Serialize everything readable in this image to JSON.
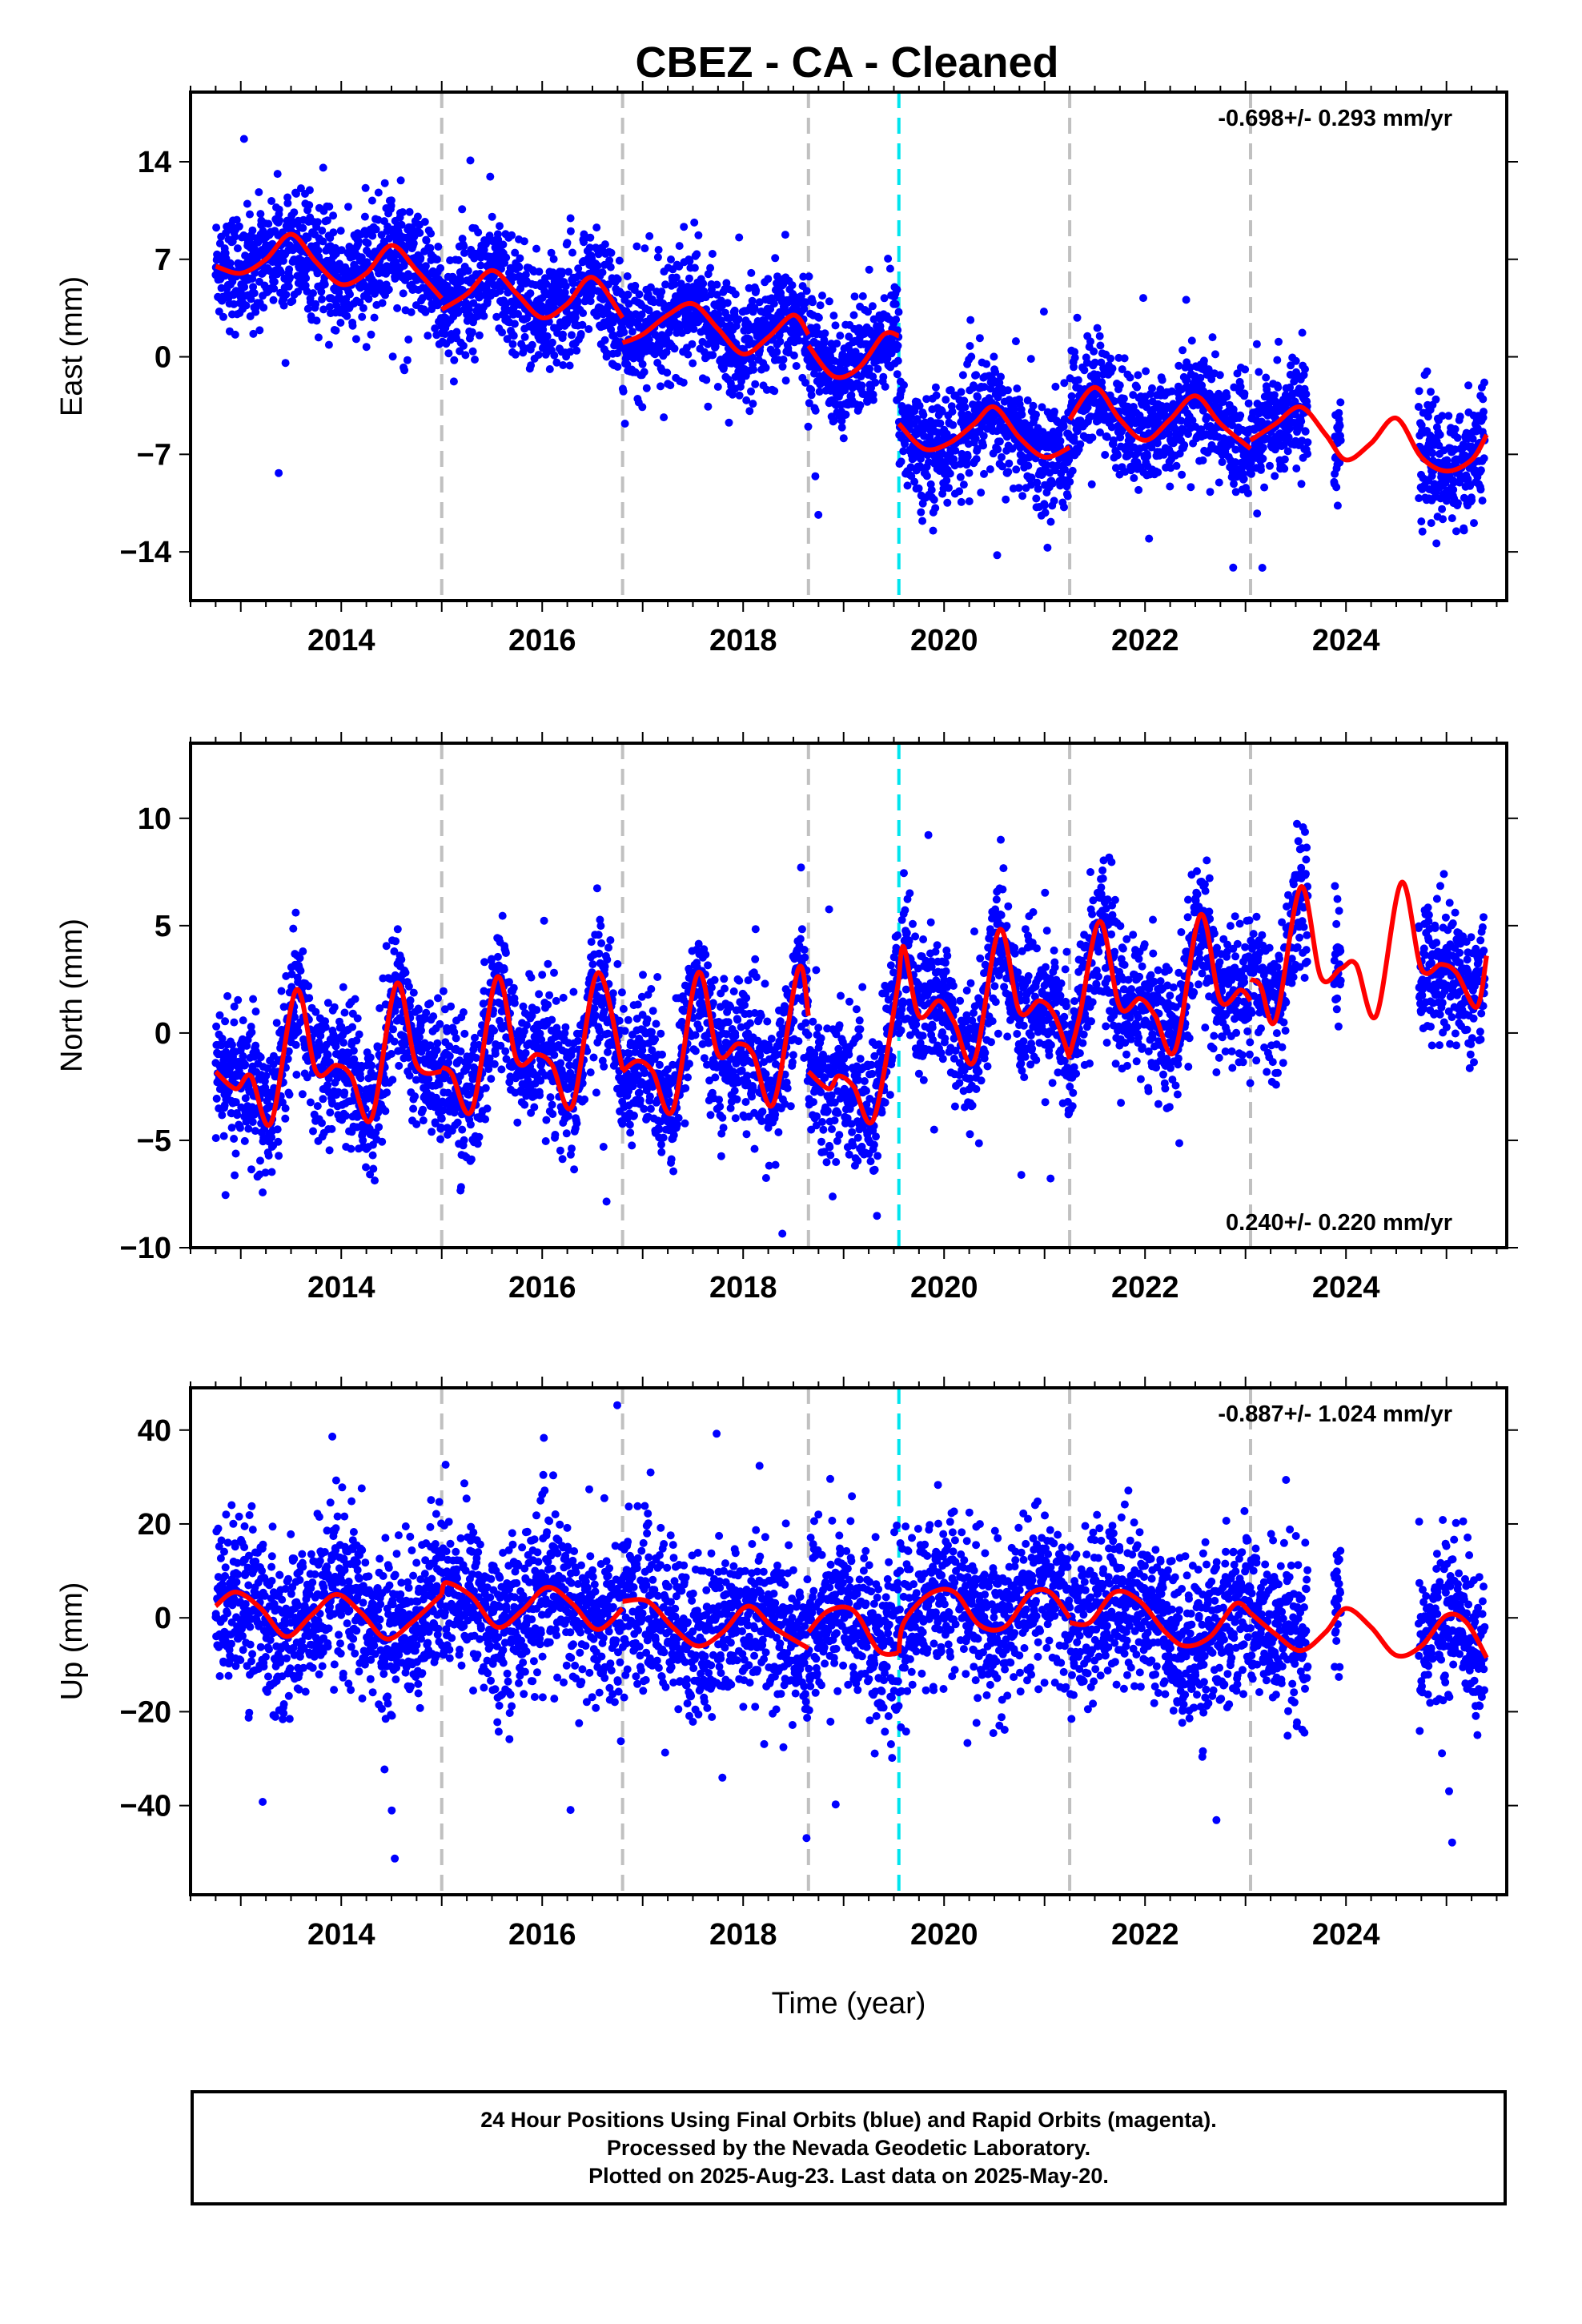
{
  "title": "CBEZ  - CA - Cleaned",
  "xlabel": "Time (year)",
  "colors": {
    "points": "#0000ff",
    "fit": "#ff0000",
    "offset_line": "#c0c0c0",
    "equipment_line": "#00e5ee"
  },
  "chart_data": [
    {
      "type": "scatter",
      "name": "east",
      "ylabel": "East (mm)",
      "rate_label": "-0.698+/- 0.293 mm/yr",
      "rate_position": "top-right",
      "xlim": [
        2012.5,
        2025.6
      ],
      "ylim": [
        -17.5,
        19
      ],
      "xticks": [
        2014,
        2016,
        2018,
        2020,
        2022,
        2024
      ],
      "xtick_labels": [
        "2014",
        "2016",
        "2018",
        "2020",
        "2022",
        "2024"
      ],
      "yticks": [
        14,
        7,
        0,
        -7,
        -14
      ],
      "ytick_labels": [
        "14",
        "7",
        "0",
        "−7",
        "−14"
      ],
      "vlines_gray": [
        2015.0,
        2016.8,
        2018.65,
        2021.25,
        2023.05
      ],
      "vlines_cyan": [
        2019.55
      ],
      "fit_segments": [
        {
          "x": [
            2012.75,
            2013.0,
            2013.25,
            2013.5,
            2013.75,
            2014.0,
            2014.25,
            2014.5,
            2014.75,
            2015.0
          ],
          "y": [
            6.5,
            6.0,
            7.0,
            8.8,
            6.8,
            5.2,
            6.0,
            8.0,
            6.2,
            4.2
          ]
        },
        {
          "x": [
            2015.0,
            2015.25,
            2015.5,
            2015.75,
            2016.0,
            2016.25,
            2016.5,
            2016.8
          ],
          "y": [
            3.4,
            4.5,
            6.2,
            4.5,
            2.8,
            3.8,
            5.7,
            2.8
          ]
        },
        {
          "x": [
            2016.8,
            2017.0,
            2017.25,
            2017.5,
            2017.75,
            2018.0,
            2018.25,
            2018.5,
            2018.65
          ],
          "y": [
            1.0,
            1.6,
            3.0,
            3.8,
            2.0,
            0.2,
            1.4,
            3.0,
            1.6
          ]
        },
        {
          "x": [
            2018.65,
            2018.9,
            2019.15,
            2019.4,
            2019.55
          ],
          "y": [
            0.8,
            -1.4,
            -0.8,
            1.6,
            1.5
          ]
        },
        {
          "x": [
            2019.55,
            2019.8,
            2020.05,
            2020.3,
            2020.5,
            2020.75,
            2021.0,
            2021.25
          ],
          "y": [
            -4.8,
            -6.6,
            -6.2,
            -4.8,
            -3.6,
            -5.8,
            -7.2,
            -6.5
          ]
        },
        {
          "x": [
            2021.25,
            2021.5,
            2021.75,
            2022.0,
            2022.25,
            2022.5,
            2022.75,
            2023.05
          ],
          "y": [
            -4.5,
            -2.2,
            -4.5,
            -6.0,
            -4.5,
            -2.8,
            -4.8,
            -6.6
          ]
        },
        {
          "x": [
            2023.05,
            2023.3,
            2023.55,
            2023.8,
            2024.0,
            2024.25,
            2024.5,
            2024.75,
            2025.0,
            2025.25,
            2025.4
          ],
          "y": [
            -6.0,
            -4.8,
            -3.6,
            -5.6,
            -7.4,
            -6.2,
            -4.4,
            -7.2,
            -8.2,
            -7.4,
            -5.6
          ]
        }
      ]
    },
    {
      "type": "scatter",
      "name": "north",
      "ylabel": "North (mm)",
      "rate_label": "0.240+/- 0.220 mm/yr",
      "rate_position": "bottom-right",
      "xlim": [
        2012.5,
        2025.6
      ],
      "ylim": [
        -10,
        13.5
      ],
      "xticks": [
        2014,
        2016,
        2018,
        2020,
        2022,
        2024
      ],
      "xtick_labels": [
        "2014",
        "2016",
        "2018",
        "2020",
        "2022",
        "2024"
      ],
      "yticks": [
        10,
        5,
        0,
        -5,
        -10
      ],
      "ytick_labels": [
        "10",
        "5",
        "0",
        "−5",
        "−10"
      ],
      "vlines_gray": [
        2015.0,
        2016.8,
        2018.65,
        2021.25,
        2023.05
      ],
      "vlines_cyan": [
        2019.55
      ],
      "fit_segments": [
        {
          "x": [
            2012.75,
            2012.95,
            2013.1,
            2013.3,
            2013.55,
            2013.75,
            2013.95,
            2014.1,
            2014.3,
            2014.55,
            2014.75,
            2015.0
          ],
          "y": [
            -1.8,
            -2.6,
            -2.0,
            -4.2,
            2.0,
            -1.8,
            -1.5,
            -2.0,
            -4.0,
            2.3,
            -1.5,
            -1.8
          ]
        },
        {
          "x": [
            2015.0,
            2015.1,
            2015.3,
            2015.55,
            2015.75,
            2015.95,
            2016.1,
            2016.3,
            2016.55,
            2016.8
          ],
          "y": [
            -1.6,
            -1.9,
            -3.6,
            2.6,
            -1.3,
            -1.0,
            -1.5,
            -3.4,
            2.8,
            -1.7
          ]
        },
        {
          "x": [
            2016.8,
            2016.95,
            2017.1,
            2017.3,
            2017.55,
            2017.75,
            2017.95,
            2018.1,
            2018.3,
            2018.55,
            2018.65
          ],
          "y": [
            -1.8,
            -1.3,
            -1.8,
            -3.6,
            2.8,
            -1.0,
            -0.5,
            -1.0,
            -3.3,
            3.0,
            0.8
          ]
        },
        {
          "x": [
            2018.65,
            2018.85,
            2018.95,
            2019.1,
            2019.3,
            2019.55
          ],
          "y": [
            -1.8,
            -2.6,
            -2.0,
            -2.5,
            -4.0,
            2.5
          ]
        },
        {
          "x": [
            2019.55,
            2019.6,
            2019.75,
            2019.95,
            2020.1,
            2020.3,
            2020.55,
            2020.75,
            2020.95,
            2021.1,
            2021.25
          ],
          "y": [
            2.5,
            4.0,
            0.8,
            1.5,
            0.5,
            -1.3,
            4.8,
            1.0,
            1.5,
            0.8,
            -1.2
          ]
        },
        {
          "x": [
            2021.25,
            2021.35,
            2021.55,
            2021.75,
            2021.95,
            2022.1,
            2022.3,
            2022.55,
            2022.75,
            2022.95,
            2023.05
          ],
          "y": [
            -1.0,
            0.8,
            5.2,
            1.2,
            1.6,
            0.8,
            -0.8,
            5.5,
            1.5,
            2.0,
            1.5
          ]
        },
        {
          "x": [
            2023.05,
            2023.15,
            2023.3,
            2023.55,
            2023.75,
            2023.95,
            2024.1,
            2024.3,
            2024.55,
            2024.75,
            2024.95,
            2025.1,
            2025.3,
            2025.4
          ],
          "y": [
            2.5,
            2.2,
            0.6,
            6.8,
            2.6,
            3.0,
            3.2,
            0.8,
            7.0,
            3.0,
            3.2,
            2.8,
            1.2,
            3.6
          ]
        }
      ]
    },
    {
      "type": "scatter",
      "name": "up",
      "ylabel": "Up (mm)",
      "rate_label": "-0.887+/- 1.024 mm/yr",
      "rate_position": "top-right",
      "xlim": [
        2012.5,
        2025.6
      ],
      "ylim": [
        -59,
        49
      ],
      "xticks": [
        2014,
        2016,
        2018,
        2020,
        2022,
        2024
      ],
      "xtick_labels": [
        "2014",
        "2016",
        "2018",
        "2020",
        "2022",
        "2024"
      ],
      "yticks": [
        40,
        20,
        0,
        -20,
        -40
      ],
      "ytick_labels": [
        "40",
        "20",
        "0",
        "−20",
        "−40"
      ],
      "vlines_gray": [
        2015.0,
        2016.8,
        2018.65,
        2021.25,
        2023.05
      ],
      "vlines_cyan": [
        2019.55
      ],
      "fit_segments": [
        {
          "x": [
            2012.75,
            2012.95,
            2013.2,
            2013.45,
            2013.7,
            2013.95,
            2014.2,
            2014.45,
            2014.7,
            2015.0
          ],
          "y": [
            2.5,
            5.5,
            2.0,
            -4.0,
            0.5,
            5.0,
            1.0,
            -4.5,
            -1.0,
            5.0
          ]
        },
        {
          "x": [
            2015.0,
            2015.05,
            2015.3,
            2015.55,
            2015.8,
            2016.05,
            2016.3,
            2016.55,
            2016.8
          ],
          "y": [
            5.0,
            7.5,
            4.5,
            -2.0,
            1.5,
            6.5,
            3.0,
            -2.5,
            2.0
          ]
        },
        {
          "x": [
            2016.8,
            2017.05,
            2017.3,
            2017.55,
            2017.8,
            2018.05,
            2018.3,
            2018.65
          ],
          "y": [
            3.5,
            3.5,
            -2.0,
            -6.0,
            -3.0,
            2.5,
            -2.0,
            -6.5
          ]
        },
        {
          "x": [
            2018.65,
            2018.85,
            2019.1,
            2019.35,
            2019.55
          ],
          "y": [
            -3.0,
            1.5,
            1.5,
            -7.0,
            -7.5
          ]
        },
        {
          "x": [
            2019.55,
            2019.6,
            2019.85,
            2020.1,
            2020.35,
            2020.6,
            2020.85,
            2021.05,
            2021.25
          ],
          "y": [
            -7.5,
            -1.0,
            5.0,
            5.5,
            -1.5,
            -2.0,
            5.0,
            5.5,
            0.0
          ]
        },
        {
          "x": [
            2021.25,
            2021.45,
            2021.7,
            2021.95,
            2022.2,
            2022.4,
            2022.65,
            2022.9,
            2023.05
          ],
          "y": [
            -1.0,
            -1.0,
            5.5,
            3.5,
            -3.0,
            -6.0,
            -4.0,
            3.0,
            1.0
          ]
        },
        {
          "x": [
            2023.05,
            2023.3,
            2023.55,
            2023.8,
            2024.0,
            2024.25,
            2024.5,
            2024.75,
            2025.0,
            2025.2,
            2025.4
          ],
          "y": [
            1.0,
            -3.5,
            -7.0,
            -3.0,
            2.0,
            -2.0,
            -8.0,
            -6.0,
            0.5,
            -1.0,
            -8.5
          ]
        }
      ]
    }
  ],
  "caption": {
    "line1": "24 Hour Positions Using Final Orbits (blue) and Rapid Orbits (magenta).",
    "line2": "Processed by the Nevada Geodetic Laboratory.",
    "line3": "Plotted on 2025-Aug-23. Last data on 2025-May-20."
  }
}
